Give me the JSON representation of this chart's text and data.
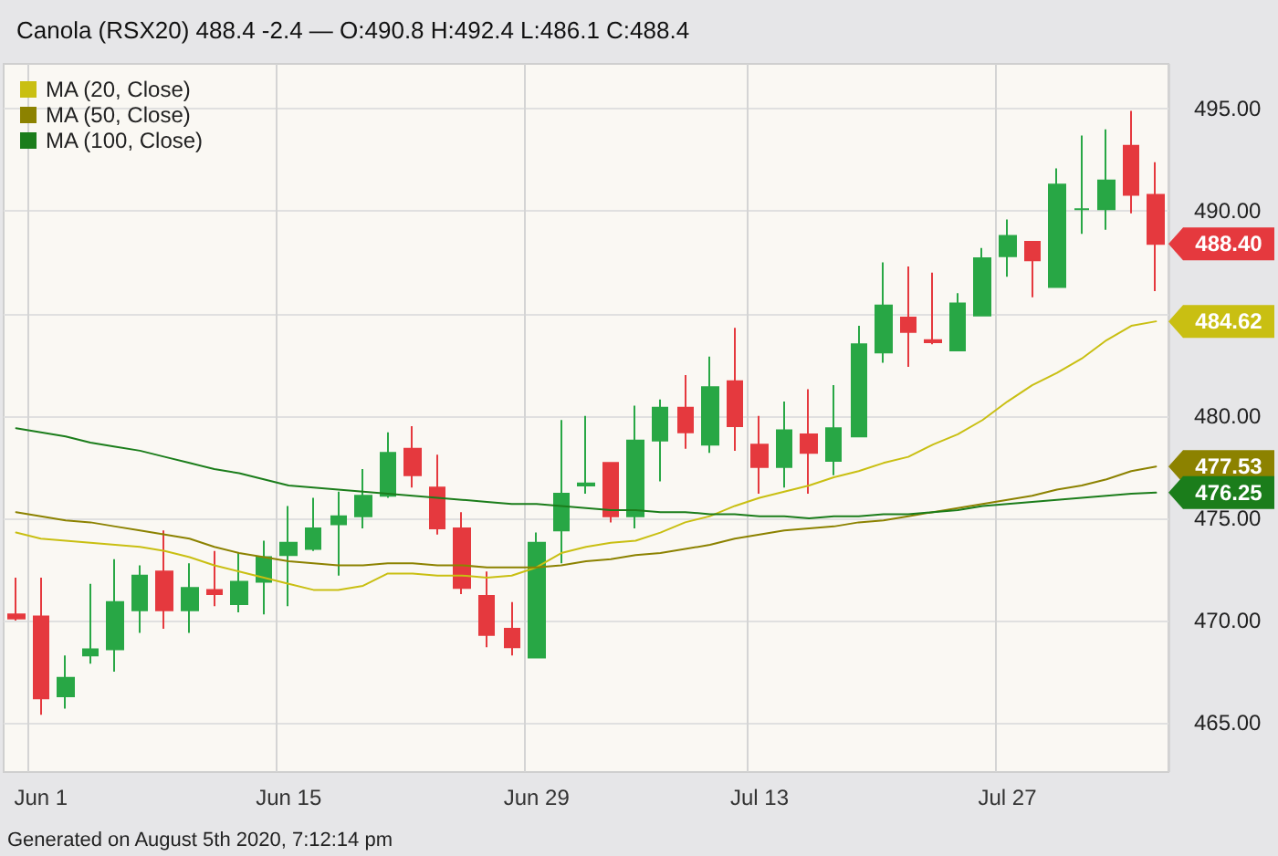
{
  "chart_data": {
    "type": "candlestick",
    "title": "Canola (RSX20) 488.4 -2.4 — O:490.8 H:492.4 L:486.1 C:488.4",
    "categories": [
      null,
      "Jun 1",
      null,
      null,
      null,
      null,
      null,
      null,
      null,
      null,
      null,
      "Jun 15",
      null,
      null,
      null,
      null,
      null,
      null,
      null,
      null,
      null,
      "Jun 29",
      null,
      null,
      null,
      null,
      null,
      null,
      null,
      null,
      "Jul 13",
      null,
      null,
      null,
      null,
      null,
      null,
      null,
      null,
      null,
      "Jul 27",
      null,
      null,
      null,
      null,
      null,
      null
    ],
    "ohlc": [
      [
        470.3,
        472.1,
        470.0,
        470.1
      ],
      [
        470.2,
        472.1,
        465.4,
        466.2
      ],
      [
        466.3,
        468.3,
        465.7,
        467.2
      ],
      [
        468.3,
        471.8,
        467.9,
        468.6
      ],
      [
        468.6,
        473.0,
        467.5,
        470.9
      ],
      [
        470.5,
        472.7,
        469.4,
        472.2
      ],
      [
        472.4,
        474.4,
        469.6,
        470.5
      ],
      [
        470.5,
        472.8,
        469.4,
        471.6
      ],
      [
        471.5,
        473.4,
        470.7,
        471.3
      ],
      [
        470.8,
        473.3,
        470.4,
        471.9
      ],
      [
        471.9,
        473.9,
        470.3,
        473.1
      ],
      [
        473.2,
        475.6,
        470.7,
        473.8
      ],
      [
        473.5,
        476.0,
        473.4,
        474.5
      ],
      [
        474.7,
        476.3,
        472.2,
        475.1
      ],
      [
        475.1,
        477.4,
        474.5,
        476.1
      ],
      [
        476.1,
        479.2,
        476.0,
        478.2
      ],
      [
        478.4,
        479.5,
        476.5,
        477.1
      ],
      [
        476.5,
        478.1,
        474.2,
        474.5
      ],
      [
        474.5,
        475.3,
        471.3,
        471.6
      ],
      [
        471.2,
        472.4,
        468.7,
        469.3
      ],
      [
        469.6,
        470.9,
        468.3,
        468.7
      ],
      [
        468.2,
        474.3,
        468.2,
        473.8
      ],
      [
        474.4,
        479.8,
        472.8,
        476.2
      ],
      [
        476.6,
        480.0,
        476.2,
        476.7
      ],
      [
        477.7,
        477.7,
        474.8,
        475.1
      ],
      [
        475.1,
        480.5,
        474.5,
        478.8
      ],
      [
        478.8,
        480.8,
        476.8,
        480.4
      ],
      [
        480.4,
        482.0,
        478.4,
        479.2
      ],
      [
        478.6,
        482.9,
        478.2,
        481.4
      ],
      [
        481.7,
        484.3,
        478.3,
        479.5
      ],
      [
        478.6,
        480.0,
        476.2,
        477.5
      ],
      [
        477.5,
        480.7,
        476.5,
        479.3
      ],
      [
        479.1,
        481.3,
        476.2,
        478.2
      ],
      [
        477.8,
        481.5,
        477.1,
        479.4
      ],
      [
        479.0,
        484.4,
        479.0,
        483.5
      ],
      [
        483.1,
        487.5,
        482.6,
        485.4
      ],
      [
        484.8,
        487.3,
        482.4,
        484.1
      ],
      [
        483.7,
        487.0,
        483.5,
        483.6
      ],
      [
        483.2,
        486.0,
        483.2,
        485.5
      ],
      [
        484.9,
        488.2,
        484.9,
        487.7
      ],
      [
        487.8,
        489.6,
        486.8,
        488.8
      ],
      [
        488.5,
        488.5,
        485.8,
        487.6
      ],
      [
        486.3,
        492.1,
        486.3,
        491.3
      ],
      [
        490.1,
        493.7,
        488.9,
        490.1
      ],
      [
        490.1,
        494.0,
        489.1,
        491.5
      ],
      [
        493.2,
        494.9,
        489.9,
        490.8
      ],
      [
        490.8,
        492.4,
        486.1,
        488.4
      ]
    ],
    "colors": [
      "#e5393e",
      "#e5393e",
      "#28a745",
      "#28a745",
      "#28a745",
      "#28a745",
      "#e5393e",
      "#28a745",
      "#e5393e",
      "#28a745",
      "#28a745",
      "#28a745",
      "#28a745",
      "#28a745",
      "#28a745",
      "#28a745",
      "#e5393e",
      "#e5393e",
      "#e5393e",
      "#e5393e",
      "#e5393e",
      "#28a745",
      "#28a745",
      "#28a745",
      "#e5393e",
      "#28a745",
      "#28a745",
      "#e5393e",
      "#28a745",
      "#e5393e",
      "#e5393e",
      "#28a745",
      "#e5393e",
      "#28a745",
      "#28a745",
      "#28a745",
      "#e5393e",
      "#e5393e",
      "#28a745",
      "#28a745",
      "#28a745",
      "#e5393e",
      "#28a745",
      "#28a745",
      "#28a745",
      "#e5393e",
      "#e5393e"
    ],
    "series": [
      {
        "type": "line",
        "name": "MA (20, Close)",
        "color": "#c9bf12",
        "values": [
          474.3,
          474.0,
          473.9,
          473.8,
          473.7,
          473.6,
          473.4,
          473.1,
          472.7,
          472.4,
          472.1,
          471.8,
          471.5,
          471.5,
          471.7,
          472.3,
          472.3,
          472.2,
          472.2,
          472.1,
          472.2,
          472.6,
          473.3,
          473.6,
          473.8,
          473.9,
          474.3,
          474.8,
          475.1,
          475.6,
          476.0,
          476.3,
          476.6,
          477.0,
          477.3,
          477.7,
          478.0,
          478.6,
          479.1,
          479.8,
          480.7,
          481.5,
          482.1,
          482.8,
          483.7,
          484.4,
          484.62
        ],
        "value_labels": [
          null,
          null,
          null,
          null,
          null,
          null,
          null,
          null,
          null,
          null,
          null,
          null,
          null,
          null,
          null,
          null,
          null,
          null,
          null,
          null,
          null,
          null,
          null,
          null,
          null,
          null,
          null,
          null,
          null,
          null,
          null,
          null,
          null,
          null,
          null,
          null,
          null,
          null,
          null,
          null,
          null,
          null,
          null,
          null,
          null,
          null,
          "484.62"
        ]
      },
      {
        "type": "line",
        "name": "MA (50, Close)",
        "color": "#8c8200",
        "values": [
          475.3,
          475.1,
          474.9,
          474.8,
          474.6,
          474.4,
          474.2,
          474.0,
          473.6,
          473.3,
          473.1,
          472.9,
          472.8,
          472.7,
          472.7,
          472.8,
          472.8,
          472.7,
          472.7,
          472.6,
          472.6,
          472.6,
          472.7,
          472.9,
          473.0,
          473.2,
          473.3,
          473.5,
          473.7,
          474.0,
          474.2,
          474.4,
          474.5,
          474.6,
          474.8,
          474.9,
          475.1,
          475.3,
          475.5,
          475.7,
          475.9,
          476.1,
          476.4,
          476.6,
          476.9,
          477.3,
          477.53
        ],
        "value_labels": [
          null,
          null,
          null,
          null,
          null,
          null,
          null,
          null,
          null,
          null,
          null,
          null,
          null,
          null,
          null,
          null,
          null,
          null,
          null,
          null,
          null,
          null,
          null,
          null,
          null,
          null,
          null,
          null,
          null,
          null,
          null,
          null,
          null,
          null,
          null,
          null,
          null,
          null,
          null,
          null,
          null,
          null,
          null,
          null,
          null,
          null,
          "477.53"
        ]
      },
      {
        "type": "line",
        "name": "MA (100, Close)",
        "color": "#1b7d1b",
        "values": [
          479.4,
          479.2,
          479.0,
          478.7,
          478.5,
          478.3,
          478.0,
          477.7,
          477.4,
          477.2,
          476.9,
          476.6,
          476.5,
          476.4,
          476.3,
          476.2,
          476.1,
          476.0,
          475.9,
          475.8,
          475.7,
          475.7,
          475.6,
          475.5,
          475.4,
          475.4,
          475.3,
          475.3,
          475.2,
          475.2,
          475.1,
          475.1,
          475.0,
          475.1,
          475.1,
          475.2,
          475.2,
          475.3,
          475.4,
          475.6,
          475.7,
          475.8,
          475.9,
          476.0,
          476.1,
          476.2,
          476.25
        ],
        "value_labels": [
          null,
          null,
          null,
          null,
          null,
          null,
          null,
          null,
          null,
          null,
          null,
          null,
          null,
          null,
          null,
          null,
          null,
          null,
          null,
          null,
          null,
          null,
          null,
          null,
          null,
          null,
          null,
          null,
          null,
          null,
          null,
          null,
          null,
          null,
          null,
          null,
          null,
          null,
          null,
          null,
          null,
          null,
          null,
          null,
          null,
          null,
          "476.25"
        ]
      }
    ],
    "value_labels": [
      null,
      null,
      null,
      null,
      null,
      null,
      null,
      null,
      null,
      null,
      null,
      null,
      null,
      null,
      null,
      null,
      null,
      null,
      null,
      null,
      null,
      null,
      null,
      null,
      null,
      null,
      null,
      null,
      null,
      null,
      null,
      null,
      null,
      null,
      null,
      null,
      null,
      null,
      null,
      null,
      null,
      null,
      null,
      null,
      null,
      null,
      "488.40"
    ],
    "ylim": [
      462.6,
      497.2
    ],
    "yticks": [
      {
        "value": 465,
        "label": "465.00"
      },
      {
        "value": 470,
        "label": "470.00"
      },
      {
        "value": 475,
        "label": "475.00"
      },
      {
        "value": 480,
        "label": "480.00"
      },
      {
        "value": 485,
        "label": null
      },
      {
        "value": 490,
        "label": "490.00"
      },
      {
        "value": 495,
        "label": "495.00"
      }
    ],
    "grid": true,
    "legend": "top left",
    "marker": "none",
    "line_style": "solid",
    "annotations": [
      "Generated on August 5th 2020, 7:12:14 pm"
    ]
  }
}
